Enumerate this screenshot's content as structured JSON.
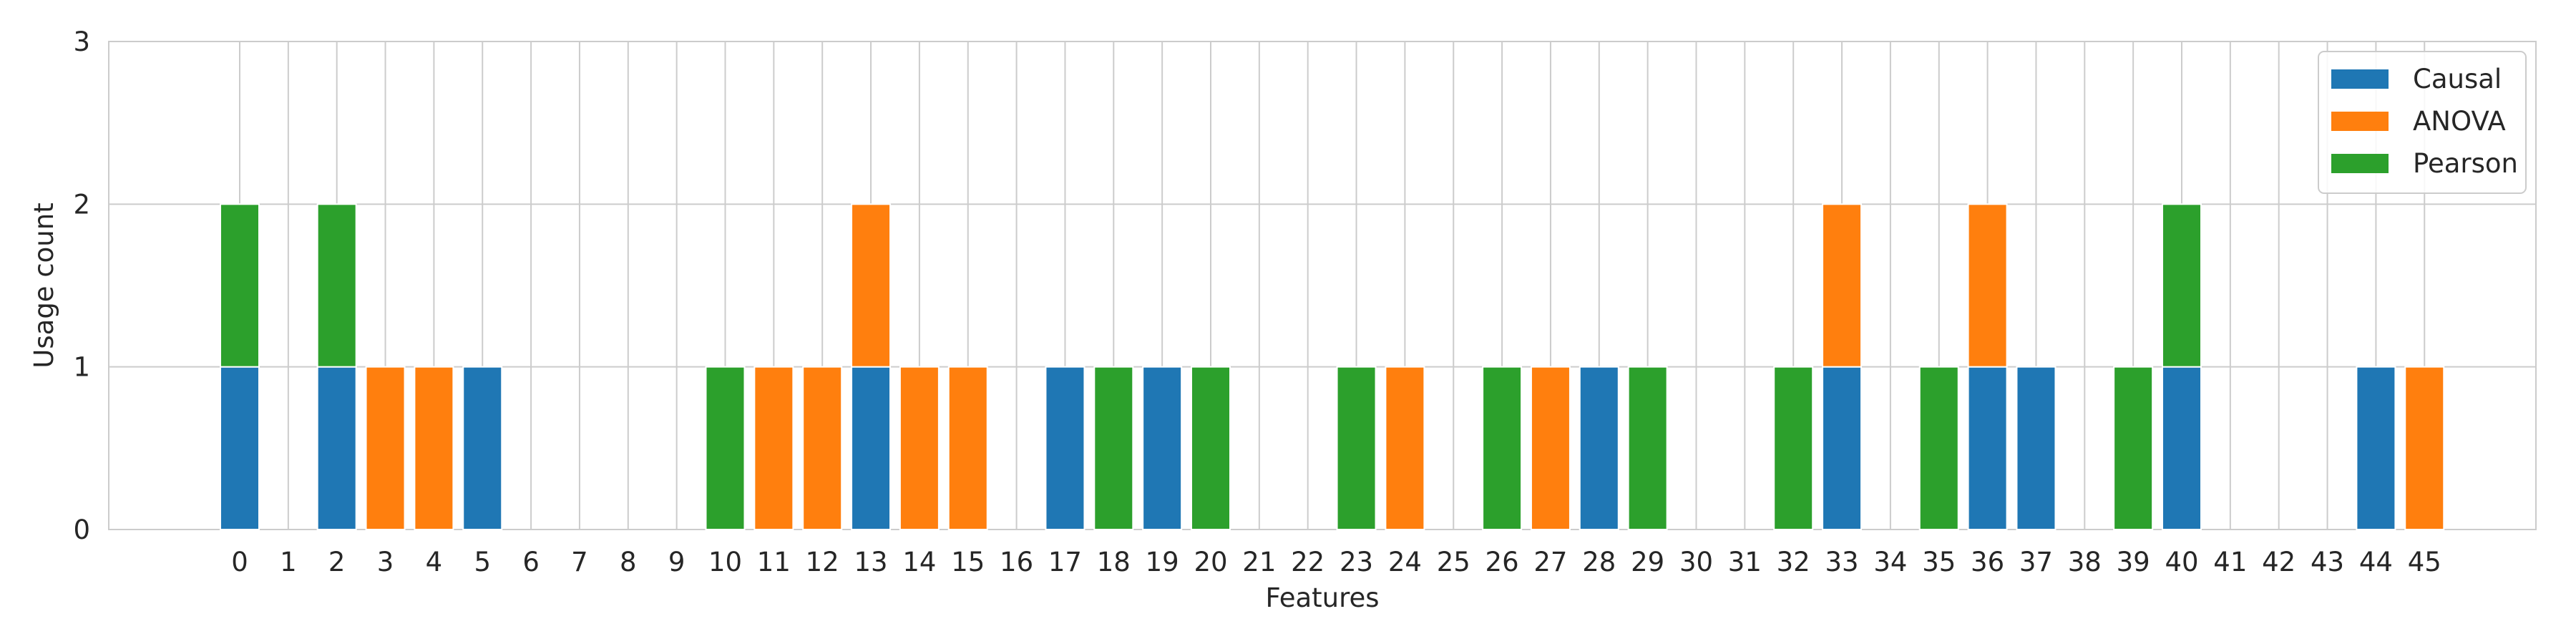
{
  "chart_data": {
    "type": "bar",
    "stacked": true,
    "xlabel": "Features",
    "ylabel": "Usage count",
    "ylim": [
      0,
      3
    ],
    "yticks": [
      "0",
      "1",
      "2",
      "3"
    ],
    "categories": [
      "0",
      "1",
      "2",
      "3",
      "4",
      "5",
      "6",
      "7",
      "8",
      "9",
      "10",
      "11",
      "12",
      "13",
      "14",
      "15",
      "16",
      "17",
      "18",
      "19",
      "20",
      "21",
      "22",
      "23",
      "24",
      "25",
      "26",
      "27",
      "28",
      "29",
      "30",
      "31",
      "32",
      "33",
      "34",
      "35",
      "36",
      "37",
      "38",
      "39",
      "40",
      "41",
      "42",
      "43",
      "44",
      "45"
    ],
    "grid": true,
    "legend_position": "top-right",
    "series": [
      {
        "name": "Causal",
        "color": "#1f77b4",
        "values": [
          1,
          0,
          1,
          0,
          0,
          1,
          0,
          0,
          0,
          0,
          0,
          0,
          0,
          1,
          0,
          0,
          0,
          1,
          0,
          1,
          0,
          0,
          0,
          0,
          0,
          0,
          0,
          0,
          1,
          0,
          0,
          0,
          0,
          1,
          0,
          0,
          1,
          1,
          0,
          0,
          1,
          0,
          0,
          0,
          1,
          0
        ]
      },
      {
        "name": "ANOVA",
        "color": "#ff7f0e",
        "values": [
          0,
          0,
          0,
          1,
          1,
          0,
          0,
          0,
          0,
          0,
          0,
          1,
          1,
          1,
          1,
          1,
          0,
          0,
          0,
          0,
          0,
          0,
          0,
          0,
          1,
          0,
          0,
          1,
          0,
          0,
          0,
          0,
          0,
          1,
          0,
          0,
          1,
          0,
          0,
          0,
          0,
          0,
          0,
          0,
          0,
          1
        ]
      },
      {
        "name": "Pearson",
        "color": "#2ca02c",
        "values": [
          1,
          0,
          1,
          0,
          0,
          0,
          0,
          0,
          0,
          0,
          1,
          0,
          0,
          0,
          0,
          0,
          0,
          0,
          1,
          0,
          1,
          0,
          0,
          1,
          0,
          0,
          1,
          0,
          0,
          1,
          0,
          0,
          1,
          0,
          0,
          1,
          0,
          0,
          0,
          1,
          1,
          0,
          0,
          0,
          0,
          0
        ]
      }
    ]
  }
}
